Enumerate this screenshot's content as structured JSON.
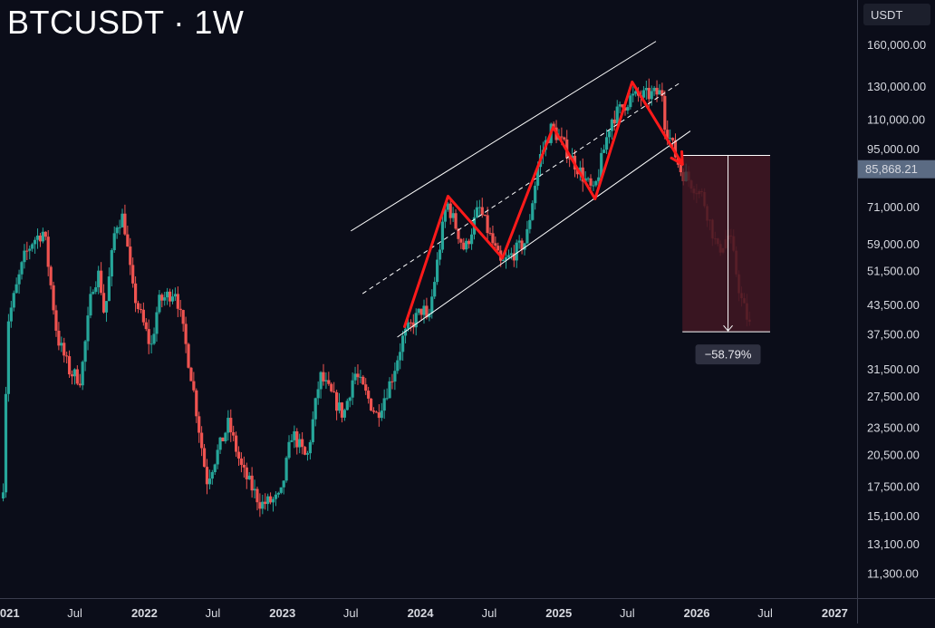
{
  "title": "BTCUSDT · 1W",
  "currency_label": "USDT",
  "colors": {
    "background": "#0b0d19",
    "up": "#26a69a",
    "down": "#ef5350",
    "zigzag": "#ff1a1a",
    "channel": "#ffffff",
    "projection_fill": "#4a1824",
    "price_tag": "#5b6b83"
  },
  "chart_data": {
    "type": "candlestick",
    "scale": "log",
    "ylim": [
      10000,
      175000
    ],
    "xlim": [
      "2020-12-15",
      "2027-03-01"
    ],
    "y_ticks": [
      {
        "value": 160000,
        "label": "160,000.00"
      },
      {
        "value": 130000,
        "label": "130,000.00"
      },
      {
        "value": 110000,
        "label": "110,000.00"
      },
      {
        "value": 95000,
        "label": "95,000.00"
      },
      {
        "value": 71000,
        "label": "71,000.00"
      },
      {
        "value": 59000,
        "label": "59,000.00"
      },
      {
        "value": 51500,
        "label": "51,500.00"
      },
      {
        "value": 43500,
        "label": "43,500.00"
      },
      {
        "value": 37500,
        "label": "37,500.00"
      },
      {
        "value": 31500,
        "label": "31,500.00"
      },
      {
        "value": 27500,
        "label": "27,500.00"
      },
      {
        "value": 23500,
        "label": "23,500.00"
      },
      {
        "value": 20500,
        "label": "20,500.00"
      },
      {
        "value": 17500,
        "label": "17,500.00"
      },
      {
        "value": 15100,
        "label": "15,100.00"
      },
      {
        "value": 13100,
        "label": "13,100.00"
      },
      {
        "value": 11300,
        "label": "11,300.00"
      }
    ],
    "x_ticks": [
      {
        "date": "2021-01-01",
        "label": "2021",
        "bold": true
      },
      {
        "date": "2021-07-01",
        "label": "Jul",
        "bold": false
      },
      {
        "date": "2022-01-01",
        "label": "2022",
        "bold": true
      },
      {
        "date": "2022-07-01",
        "label": "Jul",
        "bold": false
      },
      {
        "date": "2023-01-01",
        "label": "2023",
        "bold": true
      },
      {
        "date": "2023-07-01",
        "label": "Jul",
        "bold": false
      },
      {
        "date": "2024-01-01",
        "label": "2024",
        "bold": true
      },
      {
        "date": "2024-07-01",
        "label": "Jul",
        "bold": false
      },
      {
        "date": "2025-01-01",
        "label": "2025",
        "bold": true
      },
      {
        "date": "2025-07-01",
        "label": "Jul",
        "bold": false
      },
      {
        "date": "2026-01-01",
        "label": "2026",
        "bold": true
      },
      {
        "date": "2026-07-01",
        "label": "Jul",
        "bold": false
      },
      {
        "date": "2027-01-01",
        "label": "2027",
        "bold": true
      }
    ],
    "price_path": [
      [
        "2020-12-20",
        11000
      ],
      [
        "2021-01-08",
        40000
      ],
      [
        "2021-02-20",
        55000
      ],
      [
        "2021-03-15",
        60000
      ],
      [
        "2021-04-14",
        63000
      ],
      [
        "2021-05-19",
        37000
      ],
      [
        "2021-06-22",
        31000
      ],
      [
        "2021-07-20",
        30000
      ],
      [
        "2021-08-20",
        48000
      ],
      [
        "2021-09-07",
        51000
      ],
      [
        "2021-09-21",
        41000
      ],
      [
        "2021-10-20",
        65000
      ],
      [
        "2021-11-10",
        68000
      ],
      [
        "2021-12-04",
        47000
      ],
      [
        "2022-01-22",
        35000
      ],
      [
        "2022-02-10",
        44000
      ],
      [
        "2022-03-28",
        47000
      ],
      [
        "2022-05-10",
        30000
      ],
      [
        "2022-06-18",
        18000
      ],
      [
        "2022-08-15",
        24000
      ],
      [
        "2022-09-20",
        19000
      ],
      [
        "2022-11-09",
        16000
      ],
      [
        "2022-12-30",
        16500
      ],
      [
        "2023-01-30",
        23000
      ],
      [
        "2023-03-10",
        20000
      ],
      [
        "2023-04-14",
        30500
      ],
      [
        "2023-06-15",
        25000
      ],
      [
        "2023-07-14",
        31000
      ],
      [
        "2023-09-11",
        25000
      ],
      [
        "2023-10-20",
        30000
      ],
      [
        "2023-11-20",
        37000
      ],
      [
        "2024-01-12",
        43000
      ],
      [
        "2024-01-23",
        39000
      ],
      [
        "2024-03-14",
        73000
      ],
      [
        "2024-05-01",
        57000
      ],
      [
        "2024-06-07",
        71000
      ],
      [
        "2024-08-05",
        53000
      ],
      [
        "2024-10-10",
        60000
      ],
      [
        "2024-11-13",
        90000
      ],
      [
        "2024-12-17",
        106000
      ],
      [
        "2025-02-03",
        92000
      ],
      [
        "2025-04-07",
        76000
      ],
      [
        "2025-05-22",
        110000
      ],
      [
        "2025-07-14",
        123000
      ],
      [
        "2025-08-14",
        124000
      ],
      [
        "2025-10-06",
        126000
      ],
      [
        "2025-10-10",
        110000
      ],
      [
        "2025-11-21",
        85868
      ],
      [
        "2026-01-20",
        75000
      ],
      [
        "2026-03-01",
        57000
      ],
      [
        "2026-04-01",
        62000
      ],
      [
        "2026-05-01",
        45000
      ],
      [
        "2026-05-25",
        39000
      ]
    ],
    "last_price": {
      "value": 85868.21,
      "label": "85,868.21"
    },
    "zigzag": [
      [
        "2023-11-20",
        39000
      ],
      [
        "2024-03-14",
        75000
      ],
      [
        "2024-08-05",
        55000
      ],
      [
        "2024-12-17",
        106000
      ],
      [
        "2025-04-07",
        74000
      ],
      [
        "2025-07-14",
        133000
      ],
      [
        "2025-11-24",
        88000
      ]
    ],
    "channel": {
      "upper": [
        [
          "2023-07-01",
          63000
        ],
        [
          "2025-09-15",
          163000
        ]
      ],
      "middle": [
        [
          "2023-08-01",
          46000
        ],
        [
          "2025-11-15",
          132000
        ]
      ],
      "lower": [
        [
          "2023-11-01",
          37000
        ],
        [
          "2025-12-15",
          104000
        ]
      ]
    },
    "projection": {
      "start": "2025-11-24",
      "end": "2026-07-14",
      "top": 92000,
      "bottom": 38000,
      "change_label": "−58.79%"
    }
  }
}
